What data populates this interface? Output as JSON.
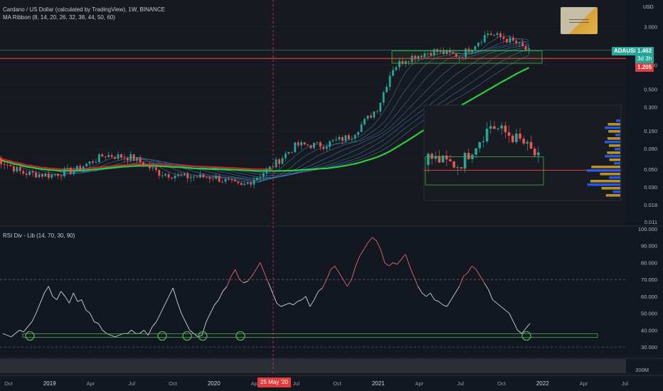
{
  "header": {
    "symbol_line": "Cardano / US Dollar (calculated by TradingView), 1W, BINANCE",
    "indicator_line": "MA Ribbon (8, 14, 20, 26, 32, 38, 44, 50, 60)",
    "rsi_line": "RSI Div - Lib (14, 70, 30, 90)",
    "axis_unit": "USD"
  },
  "price_tags": {
    "symbol": "ADAUSD",
    "last_price": "1.462",
    "countdown": "3d 3h",
    "line_price": "1.205"
  },
  "date_badge": "25 May '20",
  "colors": {
    "background": "#131722",
    "bull": "#26a69a",
    "bear": "#ef5350",
    "ribbon_fast": "#4b8ec8",
    "ribbon_slow_red": "#c62828",
    "ribbon_green": "#2ecc40",
    "rsi_line": "#d1d4dc",
    "rsi_overbought": "#e06868",
    "support_box": "#4caf50"
  },
  "chart_data": [
    {
      "type": "line",
      "scale": "log",
      "ylim": [
        0.011,
        5.5
      ],
      "yticks": [
        {
          "value": 3.0,
          "label": "3.000"
        },
        {
          "value": 1.0,
          "label": "1.000"
        },
        {
          "value": 0.5,
          "label": "0.500"
        },
        {
          "value": 0.3,
          "label": "0.300"
        },
        {
          "value": 0.15,
          "label": "0.150"
        },
        {
          "value": 0.09,
          "label": "0.090"
        },
        {
          "value": 0.05,
          "label": "0.050"
        },
        {
          "value": 0.03,
          "label": "0.030"
        },
        {
          "value": 0.018,
          "label": "0.018"
        },
        {
          "value": 0.011,
          "label": "0.011"
        }
      ],
      "x_labels": [
        "Oct",
        "2019",
        "Apr",
        "Jul",
        "Oct",
        "2020",
        "Apr",
        "Jul",
        "Oct",
        "2021",
        "Apr",
        "Jul",
        "Oct",
        "2022",
        "Apr",
        "Jul"
      ],
      "series": [
        {
          "x": [
            "2018-09",
            "2018-11",
            "2019-01",
            "2019-03",
            "2019-05",
            "2019-07",
            "2019-09",
            "2019-11",
            "2020-01",
            "2020-03",
            "2020-05",
            "2020-07",
            "2020-09",
            "2020-11",
            "2021-01",
            "2021-02",
            "2021-03",
            "2021-05",
            "2021-07",
            "2021-09",
            "2021-10",
            "2021-11",
            "2021-12"
          ],
          "values": [
            0.07,
            0.045,
            0.042,
            0.05,
            0.075,
            0.07,
            0.045,
            0.04,
            0.04,
            0.03,
            0.05,
            0.1,
            0.1,
            0.13,
            0.3,
            0.9,
            1.2,
            1.5,
            1.3,
            2.5,
            2.2,
            1.9,
            1.46
          ]
        }
      ],
      "horizontal_line": 1.205
    },
    {
      "type": "line",
      "ylim": [
        25,
        100
      ],
      "yticks": [
        {
          "value": 100,
          "label": "100.000"
        },
        {
          "value": 90,
          "label": "90.000"
        },
        {
          "value": 80,
          "label": "80.000"
        },
        {
          "value": 70,
          "label": "70.000"
        },
        {
          "value": 60,
          "label": "60.000"
        },
        {
          "value": 50,
          "label": "50.000"
        },
        {
          "value": 40,
          "label": "40.000"
        },
        {
          "value": 30,
          "label": "30.000"
        }
      ],
      "levels": [
        70,
        30
      ],
      "series": [
        {
          "values": [
            38,
            37,
            36,
            38,
            40,
            39,
            42,
            45,
            50,
            56,
            62,
            66,
            60,
            58,
            63,
            60,
            56,
            62,
            57,
            58,
            52,
            50,
            45,
            44,
            40,
            38,
            37,
            36,
            37,
            38,
            38,
            40,
            38,
            38,
            40,
            37,
            42,
            45,
            50,
            55,
            60,
            65,
            57,
            50,
            45,
            40,
            38,
            36,
            37,
            45,
            50,
            55,
            58,
            63,
            66,
            72,
            76,
            70,
            68,
            69,
            72,
            76,
            80,
            74,
            68,
            62,
            56,
            54,
            55,
            56,
            55,
            57,
            58,
            60,
            54,
            58,
            63,
            65,
            70,
            76,
            78,
            74,
            70,
            66,
            70,
            78,
            84,
            88,
            92,
            95,
            93,
            88,
            80,
            78,
            80,
            79,
            82,
            85,
            78,
            72,
            66,
            62,
            60,
            62,
            58,
            57,
            55,
            54,
            58,
            62,
            66,
            72,
            74,
            78,
            76,
            72,
            68,
            64,
            58,
            56,
            54,
            52,
            50,
            45,
            40,
            38,
            41,
            44
          ]
        }
      ],
      "support_level": 37
    },
    {
      "type": "bar",
      "ylabel_tick": "200M"
    }
  ]
}
